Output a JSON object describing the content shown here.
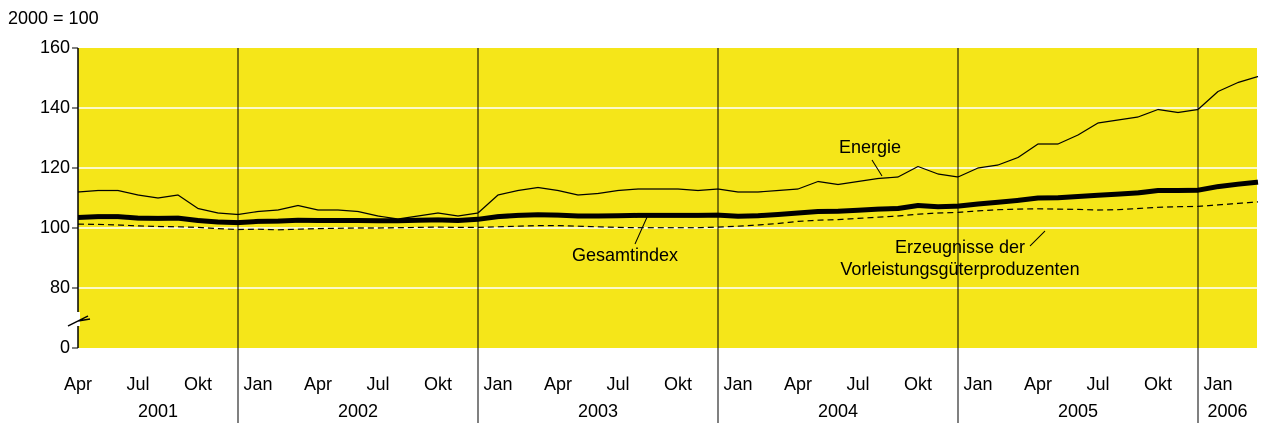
{
  "chart_data": {
    "type": "line",
    "y_label": "2000 = 100",
    "axis_break": true,
    "background": "#f5e619",
    "grid": true,
    "grid_color": "#ffffff",
    "categories": [
      "Apr",
      null,
      null,
      "Jul",
      null,
      null,
      "Okt",
      null,
      null,
      "Jan",
      null,
      null,
      "Apr",
      null,
      null,
      "Jul",
      null,
      null,
      "Okt",
      null,
      null,
      "Jan",
      null,
      null,
      "Apr",
      null,
      null,
      "Jul",
      null,
      null,
      "Okt",
      null,
      null,
      "Jan",
      null,
      null,
      "Apr",
      null,
      null,
      "Jul",
      null,
      null,
      "Okt",
      null,
      null,
      "Jan",
      null,
      null,
      "Apr",
      null,
      null,
      "Jul",
      null,
      null,
      "Okt",
      null,
      null,
      "Jan",
      null,
      null
    ],
    "years": [
      {
        "label": "2001",
        "months": 9
      },
      {
        "label": "2002",
        "months": 12
      },
      {
        "label": "2003",
        "months": 12
      },
      {
        "label": "2004",
        "months": 12
      },
      {
        "label": "2005",
        "months": 12
      },
      {
        "label": "2006",
        "months": 3
      }
    ],
    "ylim": [
      0,
      160
    ],
    "yticks": [
      0,
      80,
      100,
      120,
      140,
      160
    ],
    "series": [
      {
        "name": "Energie",
        "color": "#000000",
        "width": 1.2,
        "dashed": false,
        "values": [
          112,
          112.5,
          112.5,
          111,
          110,
          111,
          106.5,
          105,
          104.5,
          105.5,
          106,
          107.5,
          106,
          106,
          105.5,
          104,
          103,
          104,
          105,
          104,
          105,
          111,
          112.5,
          113.5,
          112.5,
          111,
          111.5,
          112.5,
          113,
          113,
          113,
          112.5,
          113,
          112,
          112,
          112.5,
          113,
          115.5,
          114.5,
          115.5,
          116.5,
          117,
          120.5,
          118,
          117,
          120,
          121,
          123.5,
          128,
          128,
          131,
          135,
          136,
          137,
          139.5,
          138.5,
          139.5,
          145.5,
          148.5,
          150.5
        ]
      },
      {
        "name": "Gesamtindex",
        "color": "#000000",
        "width": 5,
        "dashed": false,
        "values": [
          103.5,
          103.8,
          103.8,
          103.3,
          103.2,
          103.3,
          102.5,
          102,
          101.8,
          102.2,
          102.3,
          102.6,
          102.5,
          102.5,
          102.5,
          102.4,
          102.4,
          102.6,
          102.7,
          102.5,
          102.9,
          103.8,
          104.2,
          104.4,
          104.3,
          104,
          104,
          104.1,
          104.2,
          104.2,
          104.2,
          104.2,
          104.3,
          103.9,
          104.1,
          104.5,
          105,
          105.5,
          105.6,
          105.9,
          106.3,
          106.5,
          107.5,
          107.1,
          107.3,
          108,
          108.6,
          109.2,
          110,
          110.1,
          110.5,
          110.9,
          111.3,
          111.7,
          112.5,
          112.5,
          112.6,
          113.8,
          114.6,
          115.3
        ]
      },
      {
        "name": "Erzeugnisse der Vorleistungsgüterproduzenten",
        "color": "#000000",
        "width": 1.2,
        "dashed": true,
        "values": [
          101.3,
          101.2,
          101,
          100.7,
          100.5,
          100.4,
          100.2,
          99.8,
          99.5,
          99.6,
          99.4,
          99.6,
          99.8,
          99.9,
          100,
          100,
          100.1,
          100.2,
          100.3,
          100.2,
          100.2,
          100.4,
          100.6,
          100.8,
          100.8,
          100.6,
          100.4,
          100.2,
          100.1,
          100.1,
          100.1,
          100.1,
          100.3,
          100.6,
          101,
          101.5,
          102.2,
          102.6,
          102.8,
          103.2,
          103.6,
          104,
          104.6,
          105,
          105.2,
          105.7,
          106.1,
          106.3,
          106.4,
          106.3,
          106.2,
          106,
          106.1,
          106.5,
          106.9,
          107.1,
          107.2,
          107.7,
          108.2,
          108.7
        ]
      }
    ]
  }
}
